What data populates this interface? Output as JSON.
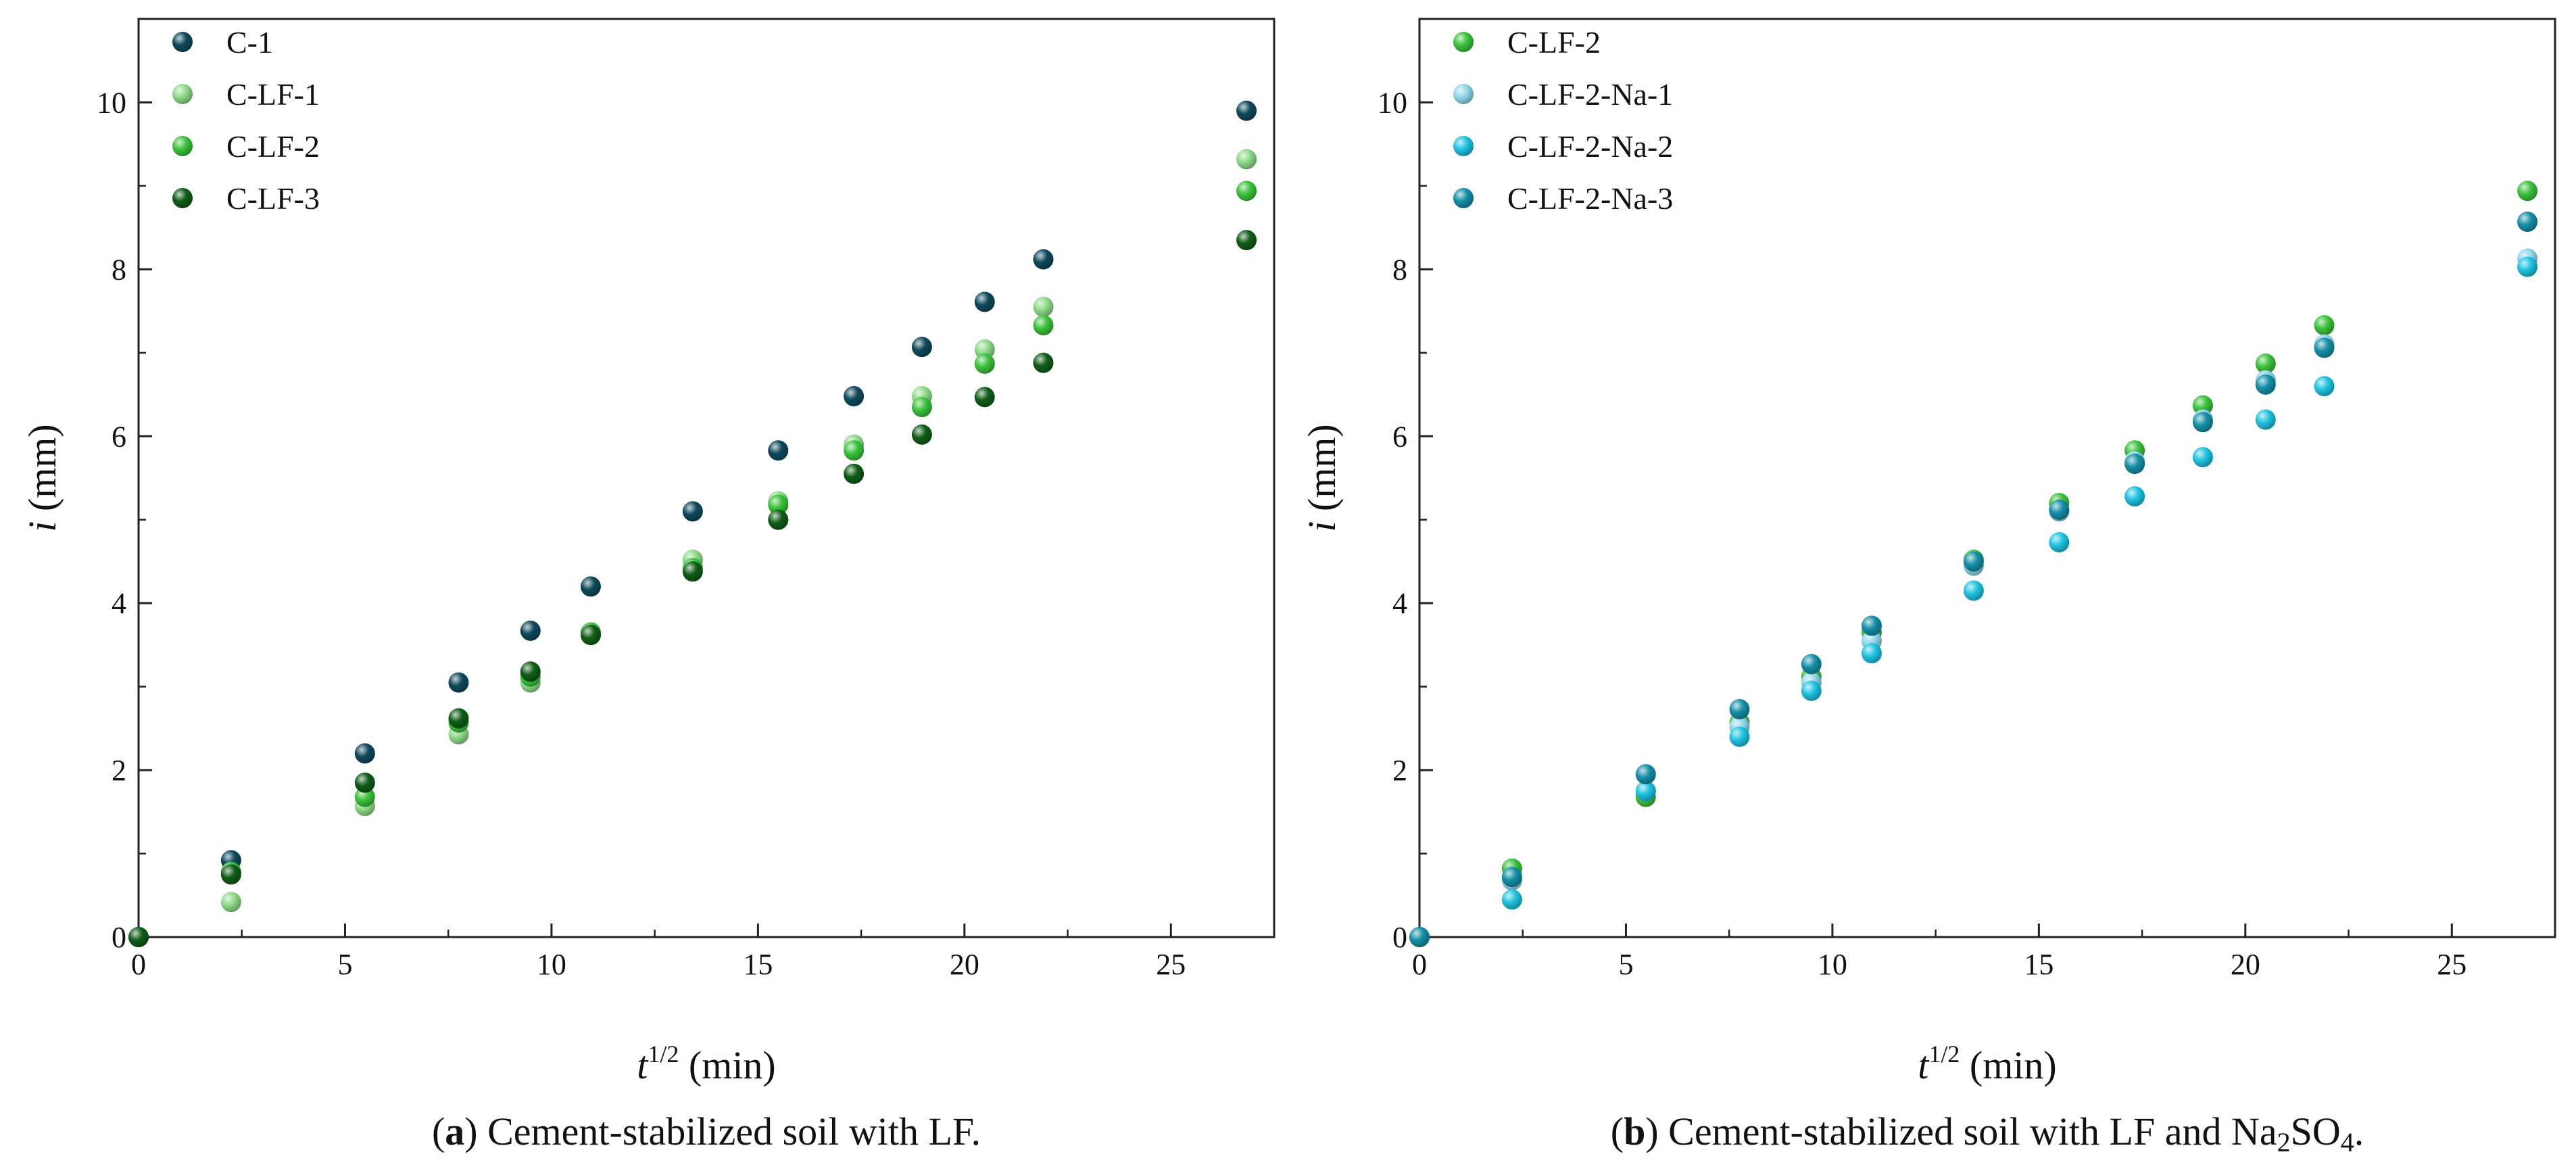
{
  "chart_data": [
    {
      "type": "scatter",
      "panel": "a",
      "caption_label": "a",
      "caption_text": "Cement-stabilized soil with LF.",
      "xlabel_main": "t",
      "xlabel_sup": "1/2",
      "xlabel_unit": " (min)",
      "ylabel_main": "i",
      "ylabel_unit": " (mm)",
      "xlim": [
        0,
        27.5
      ],
      "ylim": [
        0,
        11
      ],
      "xticks": [
        0,
        5,
        10,
        15,
        20,
        25
      ],
      "yticks": [
        0,
        2,
        4,
        6,
        8,
        10
      ],
      "grid": false,
      "legend_position": "top-left",
      "x": [
        0,
        2.24,
        5.48,
        7.75,
        9.49,
        10.95,
        13.42,
        15.49,
        17.32,
        18.97,
        20.49,
        21.91,
        26.83
      ],
      "series": [
        {
          "name": "C-1",
          "color": "#0e4a5c",
          "values": [
            0,
            0.92,
            2.2,
            3.05,
            3.67,
            4.2,
            5.1,
            5.83,
            6.48,
            7.07,
            7.61,
            8.12,
            9.9
          ]
        },
        {
          "name": "C-LF-1",
          "color": "#8fdc8a",
          "values": [
            0,
            0.42,
            1.57,
            2.43,
            3.05,
            3.62,
            4.52,
            5.22,
            5.9,
            6.48,
            7.04,
            7.55,
            9.32
          ]
        },
        {
          "name": "C-LF-2",
          "color": "#3cc43c",
          "values": [
            0,
            0.78,
            1.68,
            2.57,
            3.12,
            3.65,
            4.42,
            5.18,
            5.83,
            6.35,
            6.87,
            7.33,
            8.94
          ]
        },
        {
          "name": "C-LF-3",
          "color": "#0f5e17",
          "values": [
            0,
            0.75,
            1.85,
            2.62,
            3.18,
            3.62,
            4.38,
            5.0,
            5.55,
            6.02,
            6.47,
            6.88,
            8.35
          ]
        }
      ]
    },
    {
      "type": "scatter",
      "panel": "b",
      "caption_label": "b",
      "caption_text_before": "Cement-stabilized soil with LF and Na",
      "caption_sub1": "2",
      "caption_mid": "SO",
      "caption_sub2": "4",
      "caption_end": ".",
      "xlabel_main": "t",
      "xlabel_sup": "1/2",
      "xlabel_unit": " (min)",
      "ylabel_main": "i",
      "ylabel_unit": " (mm)",
      "xlim": [
        0,
        27.5
      ],
      "ylim": [
        0,
        11
      ],
      "xticks": [
        0,
        5,
        10,
        15,
        20,
        25
      ],
      "yticks": [
        0,
        2,
        4,
        6,
        8,
        10
      ],
      "grid": false,
      "legend_position": "top-left",
      "x": [
        0,
        2.24,
        5.48,
        7.75,
        9.49,
        10.95,
        13.42,
        15.49,
        17.32,
        18.97,
        20.49,
        21.91,
        26.83
      ],
      "series": [
        {
          "name": "C-LF-2",
          "color": "#3cc43c",
          "values": [
            0,
            0.82,
            1.68,
            2.57,
            3.12,
            3.65,
            4.52,
            5.2,
            5.83,
            6.37,
            6.87,
            7.33,
            8.94
          ]
        },
        {
          "name": "C-LF-2-Na-1",
          "color": "#8fd8ec",
          "values": [
            0,
            0.68,
            1.75,
            2.52,
            3.05,
            3.55,
            4.45,
            5.1,
            5.7,
            6.2,
            6.67,
            7.1,
            8.13
          ]
        },
        {
          "name": "C-LF-2-Na-2",
          "color": "#1ec4e2",
          "values": [
            0,
            0.45,
            1.75,
            2.4,
            2.95,
            3.4,
            4.15,
            4.73,
            5.28,
            5.75,
            6.2,
            6.6,
            8.03
          ]
        },
        {
          "name": "C-LF-2-Na-3",
          "color": "#1590a8",
          "values": [
            0,
            0.72,
            1.95,
            2.73,
            3.27,
            3.73,
            4.5,
            5.12,
            5.67,
            6.17,
            6.62,
            7.06,
            8.57
          ]
        }
      ]
    }
  ]
}
